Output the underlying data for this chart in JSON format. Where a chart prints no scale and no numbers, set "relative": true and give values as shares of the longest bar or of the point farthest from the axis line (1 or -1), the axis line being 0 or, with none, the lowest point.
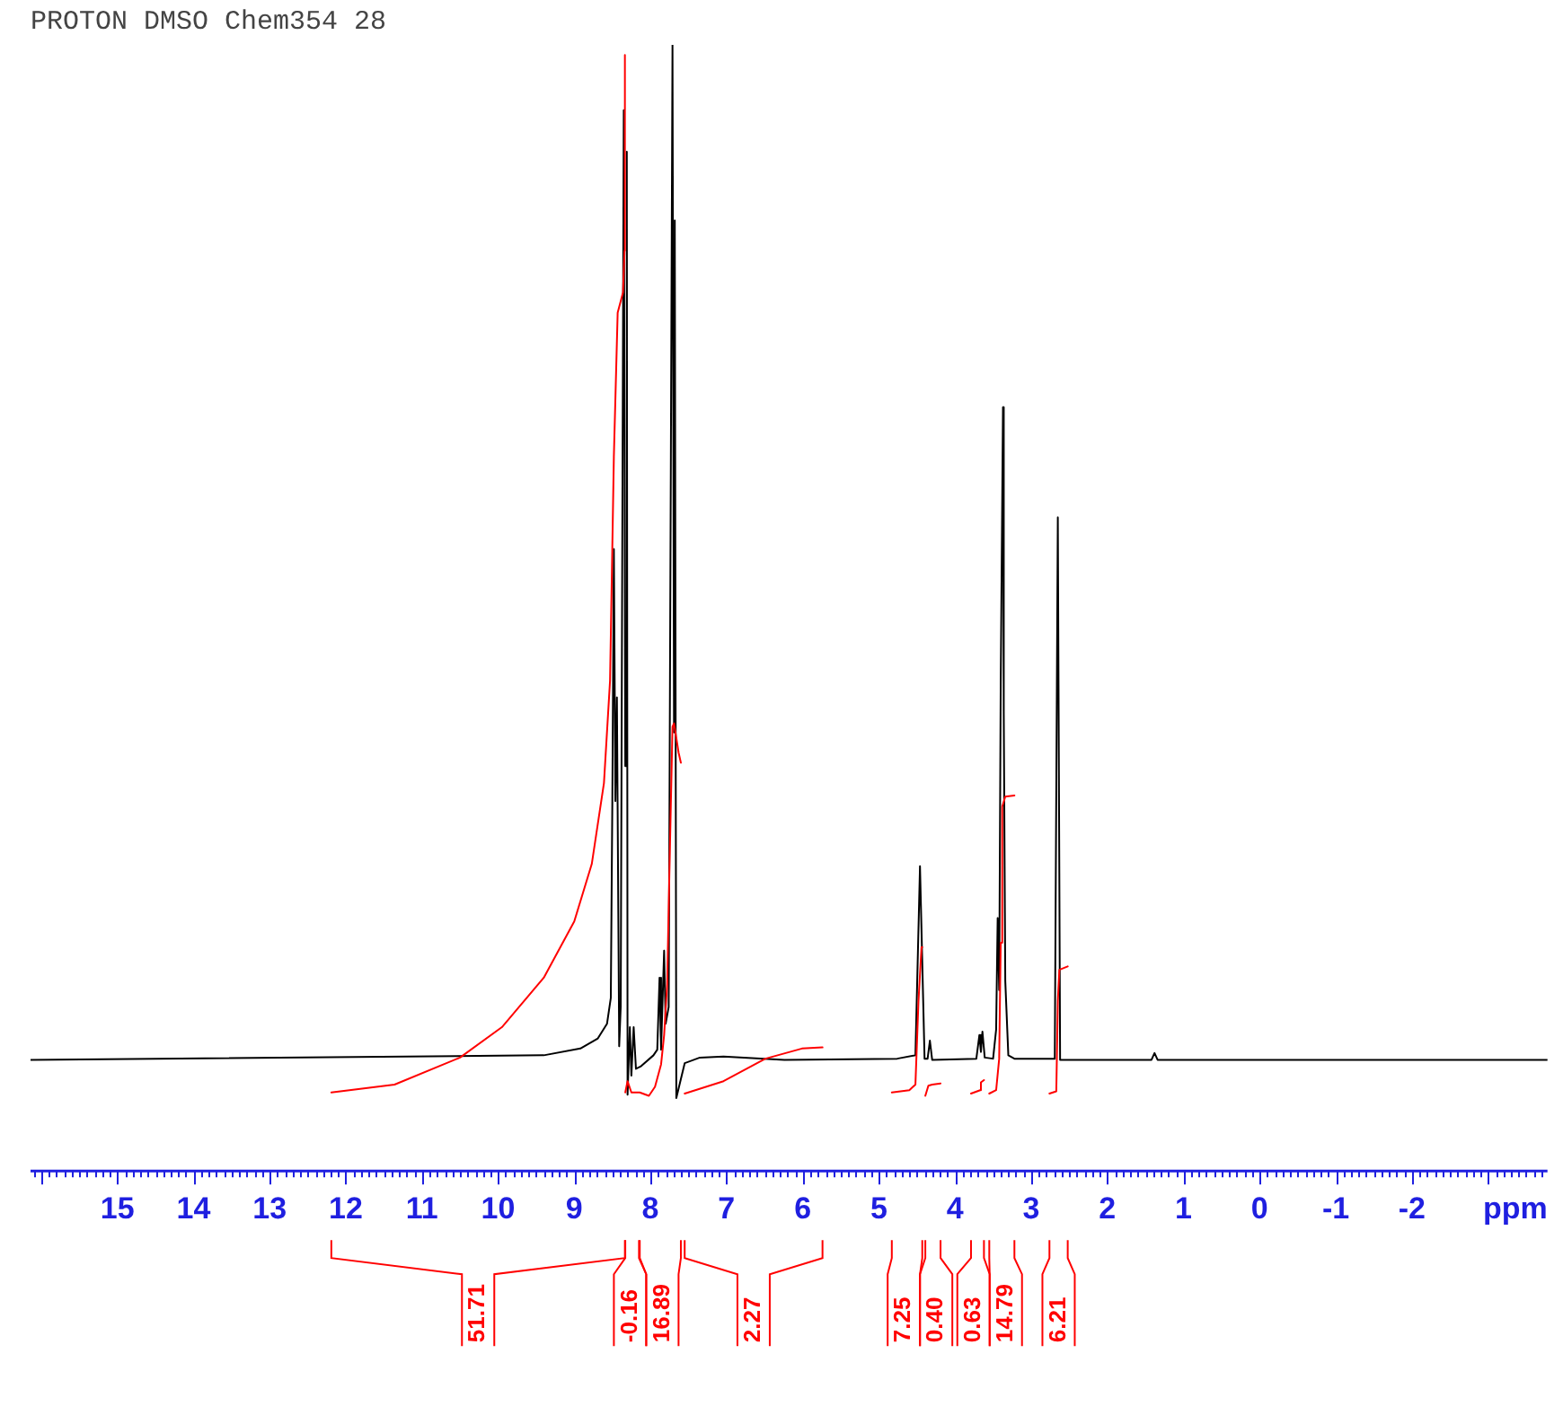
{
  "chart_data": {
    "type": "line",
    "title": "PROTON DMSO Chem354 28",
    "xlabel": "ppm",
    "relative": true,
    "xlim": [
      16.14,
      -3.78
    ],
    "xticks": [
      {
        "value": 16.1,
        "label": null
      },
      {
        "value": 16,
        "label": null
      },
      {
        "value": 15.9,
        "label": null
      },
      {
        "value": 15.8,
        "label": null
      },
      {
        "value": 15.7,
        "label": null
      },
      {
        "value": 15.6,
        "label": null
      },
      {
        "value": 15.5,
        "label": null
      },
      {
        "value": 15.4,
        "label": null
      },
      {
        "value": 15.3,
        "label": null
      },
      {
        "value": 15.2,
        "label": null
      },
      {
        "value": 15.1,
        "label": null
      },
      15,
      {
        "value": 14.9,
        "label": null
      },
      {
        "value": 14.8,
        "label": null
      },
      {
        "value": 14.7,
        "label": null
      },
      {
        "value": 14.6,
        "label": null
      },
      {
        "value": 14.5,
        "label": null
      },
      {
        "value": 14.4,
        "label": null
      },
      {
        "value": 14.3,
        "label": null
      },
      {
        "value": 14.2,
        "label": null
      },
      {
        "value": 14.1,
        "label": null
      },
      14,
      {
        "value": 13.9,
        "label": null
      },
      {
        "value": 13.8,
        "label": null
      },
      {
        "value": 13.7,
        "label": null
      },
      {
        "value": 13.6,
        "label": null
      },
      {
        "value": 13.5,
        "label": null
      },
      {
        "value": 13.4,
        "label": null
      },
      {
        "value": 13.3,
        "label": null
      },
      {
        "value": 13.2,
        "label": null
      },
      {
        "value": 13.1,
        "label": null
      },
      13,
      {
        "value": 12.9,
        "label": null
      },
      {
        "value": 12.8,
        "label": null
      },
      {
        "value": 12.7,
        "label": null
      },
      {
        "value": 12.6,
        "label": null
      },
      {
        "value": 12.5,
        "label": null
      },
      {
        "value": 12.4,
        "label": null
      },
      {
        "value": 12.3,
        "label": null
      },
      {
        "value": 12.2,
        "label": null
      },
      {
        "value": 12.1,
        "label": null
      },
      12,
      {
        "value": 11.9,
        "label": null
      },
      {
        "value": 11.8,
        "label": null
      },
      {
        "value": 11.7,
        "label": null
      },
      {
        "value": 11.6,
        "label": null
      },
      {
        "value": 11.5,
        "label": null
      },
      {
        "value": 11.4,
        "label": null
      },
      {
        "value": 11.3,
        "label": null
      },
      {
        "value": 11.2,
        "label": null
      },
      {
        "value": 11.1,
        "label": null
      },
      11,
      {
        "value": 10.9,
        "label": null
      },
      {
        "value": 10.8,
        "label": null
      },
      {
        "value": 10.7,
        "label": null
      },
      {
        "value": 10.6,
        "label": null
      },
      {
        "value": 10.5,
        "label": null
      },
      {
        "value": 10.4,
        "label": null
      },
      {
        "value": 10.3,
        "label": null
      },
      {
        "value": 10.2,
        "label": null
      },
      {
        "value": 10.1,
        "label": null
      },
      10,
      {
        "value": 9.9,
        "label": null
      },
      {
        "value": 9.8,
        "label": null
      },
      {
        "value": 9.7,
        "label": null
      },
      {
        "value": 9.6,
        "label": null
      },
      {
        "value": 9.5,
        "label": null
      },
      {
        "value": 9.4,
        "label": null
      },
      {
        "value": 9.3,
        "label": null
      },
      {
        "value": 9.2,
        "label": null
      },
      {
        "value": 9.1,
        "label": null
      },
      9,
      {
        "value": 8.9,
        "label": null
      },
      {
        "value": 8.8,
        "label": null
      },
      {
        "value": 8.7,
        "label": null
      },
      {
        "value": 8.6,
        "label": null
      },
      {
        "value": 8.5,
        "label": null
      },
      {
        "value": 8.4,
        "label": null
      },
      {
        "value": 8.3,
        "label": null
      },
      {
        "value": 8.2,
        "label": null
      },
      {
        "value": 8.1,
        "label": null
      },
      8,
      {
        "value": 7.9,
        "label": null
      },
      {
        "value": 7.8,
        "label": null
      },
      {
        "value": 7.7,
        "label": null
      },
      {
        "value": 7.6,
        "label": null
      },
      {
        "value": 7.5,
        "label": null
      },
      {
        "value": 7.4,
        "label": null
      },
      {
        "value": 7.3,
        "label": null
      },
      {
        "value": 7.2,
        "label": null
      },
      {
        "value": 7.1,
        "label": null
      },
      7,
      {
        "value": 6.9,
        "label": null
      },
      {
        "value": 6.8,
        "label": null
      },
      {
        "value": 6.7,
        "label": null
      },
      {
        "value": 6.6,
        "label": null
      },
      {
        "value": 6.5,
        "label": null
      },
      {
        "value": 6.4,
        "label": null
      },
      {
        "value": 6.3,
        "label": null
      },
      {
        "value": 6.2,
        "label": null
      },
      {
        "value": 6.1,
        "label": null
      },
      6,
      {
        "value": 5.9,
        "label": null
      },
      {
        "value": 5.8,
        "label": null
      },
      {
        "value": 5.7,
        "label": null
      },
      {
        "value": 5.6,
        "label": null
      },
      {
        "value": 5.5,
        "label": null
      },
      {
        "value": 5.4,
        "label": null
      },
      {
        "value": 5.3,
        "label": null
      },
      {
        "value": 5.2,
        "label": null
      },
      {
        "value": 5.1,
        "label": null
      },
      5,
      {
        "value": 4.9,
        "label": null
      },
      {
        "value": 4.8,
        "label": null
      },
      {
        "value": 4.7,
        "label": null
      },
      {
        "value": 4.6,
        "label": null
      },
      {
        "value": 4.5,
        "label": null
      },
      {
        "value": 4.4,
        "label": null
      },
      {
        "value": 4.3,
        "label": null
      },
      {
        "value": 4.2,
        "label": null
      },
      {
        "value": 4.1,
        "label": null
      },
      4,
      {
        "value": 3.9,
        "label": null
      },
      {
        "value": 3.8,
        "label": null
      },
      {
        "value": 3.7,
        "label": null
      },
      {
        "value": 3.6,
        "label": null
      },
      {
        "value": 3.5,
        "label": null
      },
      {
        "value": 3.4,
        "label": null
      },
      {
        "value": 3.3,
        "label": null
      },
      {
        "value": 3.2,
        "label": null
      },
      {
        "value": 3.1,
        "label": null
      },
      3,
      {
        "value": 2.9,
        "label": null
      },
      {
        "value": 2.8,
        "label": null
      },
      {
        "value": 2.7,
        "label": null
      },
      {
        "value": 2.6,
        "label": null
      },
      {
        "value": 2.5,
        "label": null
      },
      {
        "value": 2.4,
        "label": null
      },
      {
        "value": 2.3,
        "label": null
      },
      {
        "value": 2.2,
        "label": null
      },
      {
        "value": 2.1,
        "label": null
      },
      2,
      {
        "value": 1.9,
        "label": null
      },
      {
        "value": 1.8,
        "label": null
      },
      {
        "value": 1.7,
        "label": null
      },
      {
        "value": 1.6,
        "label": null
      },
      {
        "value": 1.5,
        "label": null
      },
      {
        "value": 1.4,
        "label": null
      },
      {
        "value": 1.3,
        "label": null
      },
      {
        "value": 1.2,
        "label": null
      },
      {
        "value": 1.1,
        "label": null
      },
      1,
      {
        "value": 0.9,
        "label": null
      },
      {
        "value": 0.8,
        "label": null
      },
      {
        "value": 0.7,
        "label": null
      },
      {
        "value": 0.6,
        "label": null
      },
      {
        "value": 0.5,
        "label": null
      },
      {
        "value": 0.4,
        "label": null
      },
      {
        "value": 0.3,
        "label": null
      },
      {
        "value": 0.2,
        "label": null
      },
      {
        "value": 0.1,
        "label": null
      },
      0,
      {
        "value": -0.1,
        "label": null
      },
      {
        "value": -0.2,
        "label": null
      },
      {
        "value": -0.3,
        "label": null
      },
      {
        "value": -0.4,
        "label": null
      },
      {
        "value": -0.5,
        "label": null
      },
      {
        "value": -0.6,
        "label": null
      },
      {
        "value": -0.7,
        "label": null
      },
      {
        "value": -0.8,
        "label": null
      },
      {
        "value": -0.9,
        "label": null
      },
      -1,
      {
        "value": -1.1,
        "label": null
      },
      {
        "value": -1.2,
        "label": null
      },
      {
        "value": -1.3,
        "label": null
      },
      {
        "value": -1.4,
        "label": null
      },
      {
        "value": -1.5,
        "label": null
      },
      {
        "value": -1.6,
        "label": null
      },
      {
        "value": -1.7,
        "label": null
      },
      {
        "value": -1.8,
        "label": null
      },
      {
        "value": -1.9,
        "label": null
      },
      -2,
      {
        "value": -2.1,
        "label": null
      },
      {
        "value": -2.2,
        "label": null
      },
      {
        "value": -2.3,
        "label": null
      },
      {
        "value": -2.4,
        "label": null
      },
      {
        "value": -2.5,
        "label": null
      },
      {
        "value": -2.6,
        "label": null
      },
      {
        "value": -2.7,
        "label": null
      },
      {
        "value": -2.8,
        "label": null
      },
      {
        "value": -2.9,
        "label": null
      },
      {
        "value": -3,
        "label": null
      },
      {
        "value": -3.1,
        "label": null
      },
      {
        "value": -3.2,
        "label": null
      },
      {
        "value": -3.3,
        "label": null
      },
      {
        "value": -3.4,
        "label": null
      },
      {
        "value": -3.5,
        "label": null
      },
      {
        "value": -3.6,
        "label": null
      },
      {
        "value": -3.7,
        "label": null
      }
    ],
    "series": [
      {
        "color": "#000000",
        "x": [
          16.14,
          9.4,
          8.92,
          8.69,
          8.57,
          8.52,
          8.5,
          8.48,
          8.46,
          8.44,
          8.41,
          8.39,
          8.35,
          8.33,
          8.31,
          8.3,
          8.27,
          8.25,
          8.22,
          8.19,
          8.13,
          7.96,
          7.91,
          7.88,
          7.86,
          7.82,
          7.8,
          7.76,
          7.71,
          7.69,
          7.68,
          7.66,
          7.55,
          7.35,
          7.04,
          6.24,
          4.76,
          4.52,
          4.46,
          4.4,
          4.36,
          4.33,
          4.3,
          3.72,
          3.68,
          3.66,
          3.64,
          3.61,
          3.5,
          3.46,
          3.44,
          3.42,
          3.4,
          3.37,
          3.36,
          3.34,
          3.3,
          3.22,
          2.69,
          2.65,
          2.62,
          1.42,
          1.38,
          1.34,
          -3.78
        ],
        "values": [
          0.098,
          0.102,
          0.108,
          0.117,
          0.13,
          0.153,
          0.328,
          0.552,
          0.328,
          0.42,
          0.11,
          0.145,
          0.942,
          0.359,
          0.905,
          0.067,
          0.127,
          0.084,
          0.127,
          0.09,
          0.092,
          0.102,
          0.107,
          0.171,
          0.107,
          0.195,
          0.13,
          0.145,
          1.0,
          0.389,
          0.844,
          0.064,
          0.095,
          0.1,
          0.101,
          0.098,
          0.099,
          0.102,
          0.27,
          0.099,
          0.099,
          0.115,
          0.098,
          0.099,
          0.12,
          0.105,
          0.123,
          0.1,
          0.099,
          0.125,
          0.224,
          0.16,
          0.431,
          0.678,
          0.408,
          0.168,
          0.102,
          0.099,
          0.099,
          0.58,
          0.098,
          0.098,
          0.104,
          0.098,
          0.098
        ]
      },
      {
        "color": "#ff0000",
        "x": [
          12.19,
          11.36,
          10.5,
          9.95,
          9.4,
          9.0,
          8.77,
          8.61,
          8.53,
          8.48,
          8.43,
          8.36,
          8.34,
          8.335,
          8.333,
          8.33,
          8.3,
          8.25,
          8.15,
          8.145,
          8.14,
          8.02,
          7.94,
          7.86,
          7.82,
          7.78,
          7.75,
          7.71,
          7.69,
          7.63,
          7.6,
          7.58,
          7.55,
          7.04,
          6.49,
          6.01,
          5.74,
          5.3,
          4.83,
          4.6,
          4.52,
          4.48,
          4.44,
          4.43,
          4.41,
          4.39,
          4.35,
          4.3,
          4.19,
          4.0,
          3.79,
          3.67,
          3.66,
          3.62,
          3.6,
          3.55,
          3.46,
          3.42,
          3.4,
          3.38,
          3.34,
          3.22,
          3.0,
          2.76,
          2.67,
          2.65,
          2.63,
          2.52
        ],
        "values": [
          0.069,
          0.076,
          0.1,
          0.127,
          0.171,
          0.221,
          0.272,
          0.344,
          0.435,
          0.634,
          0.762,
          0.78,
          0.817,
          0.991,
          null,
          0.069,
          0.079,
          0.069,
          0.069,
          null,
          0.069,
          0.066,
          0.074,
          0.094,
          0.12,
          0.165,
          0.267,
          0.394,
          0.397,
          0.371,
          0.362,
          null,
          0.068,
          0.079,
          0.099,
          0.108,
          0.109,
          null,
          0.069,
          0.071,
          0.076,
          0.15,
          0.198,
          0.198,
          null,
          0.066,
          0.075,
          0.076,
          0.077,
          null,
          0.068,
          0.071,
          0.078,
          0.08,
          null,
          0.068,
          0.071,
          0.099,
          0.202,
          0.323,
          0.332,
          0.333,
          null,
          0.068,
          0.07,
          0.15,
          0.178,
          0.181
        ]
      }
    ],
    "annotations": [
      "51.71",
      "-0.16",
      "16.89",
      "2.27",
      "7.25",
      "0.40",
      "0.63",
      "14.79",
      "6.21"
    ]
  }
}
